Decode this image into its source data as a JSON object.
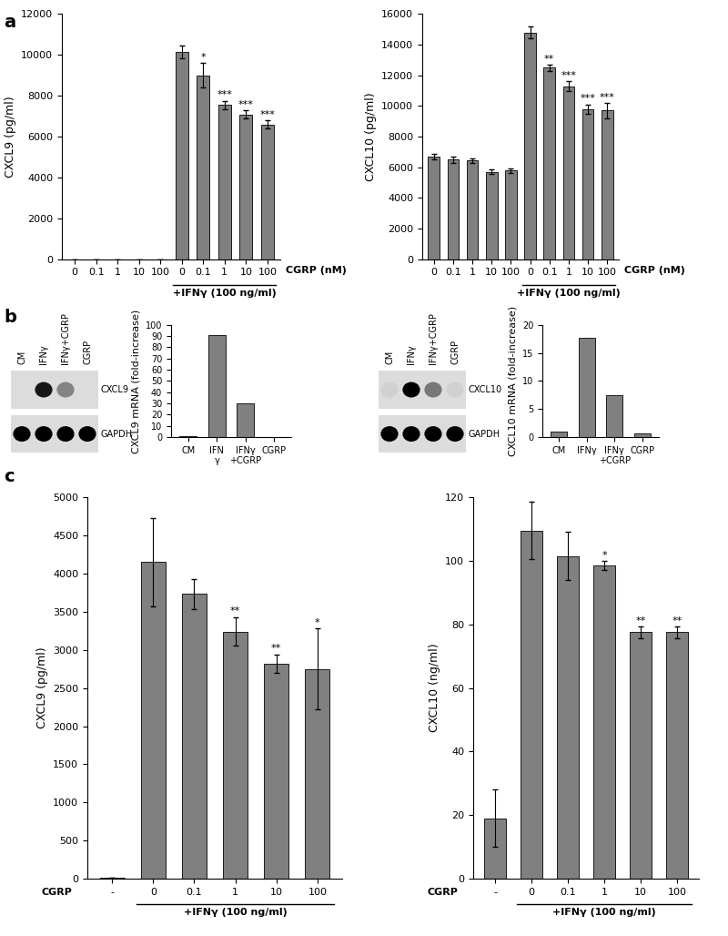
{
  "panel_labels": [
    "a",
    "b",
    "c"
  ],
  "chart_data": [
    {
      "type": "bar",
      "ylabel": "CXCL9 (pg/ml)",
      "xlabel": "CGRP (nM)",
      "categories": [
        "0",
        "0.1",
        "1",
        "10",
        "100",
        "0",
        "0.1",
        "1",
        "10",
        "100"
      ],
      "values": [
        0,
        0,
        0,
        0,
        0,
        10150,
        9000,
        7550,
        7080,
        6600
      ],
      "errors": [
        0,
        0,
        0,
        0,
        0,
        300,
        600,
        200,
        200,
        200
      ],
      "significance": [
        null,
        null,
        null,
        null,
        null,
        null,
        "*",
        "***",
        "***",
        "***"
      ],
      "treatment": [
        null,
        null,
        null,
        null,
        null,
        "+IFNγ (100 ng/ml)",
        "+IFNγ (100 ng/ml)",
        "+IFNγ (100 ng/ml)",
        "+IFNγ (100 ng/ml)",
        "+IFNγ (100 ng/ml)"
      ],
      "ylim": [
        0,
        12000
      ],
      "yticks": [
        0,
        2000,
        4000,
        6000,
        8000,
        10000,
        12000
      ],
      "color": "#808080"
    },
    {
      "type": "bar",
      "ylabel": "CXCL10 (pg/ml)",
      "xlabel": "CGRP (nM)",
      "categories": [
        "0",
        "0.1",
        "1",
        "10",
        "100",
        "0",
        "0.1",
        "1",
        "10",
        "100"
      ],
      "values": [
        6700,
        6500,
        6450,
        5700,
        5800,
        14800,
        12500,
        11300,
        9800,
        9700
      ],
      "errors": [
        200,
        200,
        150,
        150,
        150,
        400,
        200,
        300,
        300,
        500
      ],
      "significance": [
        null,
        null,
        null,
        null,
        null,
        null,
        "**",
        "***",
        "***",
        "***"
      ],
      "treatment": [
        null,
        null,
        null,
        null,
        null,
        "+IFNγ (100 ng/ml)",
        "+IFNγ (100 ng/ml)",
        "+IFNγ (100 ng/ml)",
        "+IFNγ (100 ng/ml)",
        "+IFNγ (100 ng/ml)"
      ],
      "ylim": [
        0,
        16000
      ],
      "yticks": [
        0,
        2000,
        4000,
        6000,
        8000,
        10000,
        12000,
        14000,
        16000
      ],
      "color": "#808080"
    },
    {
      "type": "bar",
      "ylabel": "CXCL9 mRNA (fold-increase)",
      "categories": [
        "CM",
        "IFN\nγ",
        "IFNγ\n+CGRP",
        "CGRP"
      ],
      "values": [
        1,
        91,
        30,
        0.3
      ],
      "ylim": [
        0,
        100
      ],
      "yticks": [
        0,
        10,
        20,
        30,
        40,
        50,
        60,
        70,
        80,
        90,
        100
      ],
      "color": "#808080"
    },
    {
      "type": "bar",
      "ylabel": "CXCL10 mRNA (fold-increase)",
      "categories": [
        "CM",
        "IFNγ",
        "IFNγ\n+CGRP",
        "CGRP"
      ],
      "values": [
        1,
        17.7,
        7.5,
        0.6
      ],
      "ylim": [
        0,
        20
      ],
      "yticks": [
        0,
        5,
        10,
        15,
        20
      ],
      "color": "#808080"
    },
    {
      "type": "bar",
      "ylabel": "CXCL9 (pg/ml)",
      "xlabel": "CGRP",
      "categories": [
        "-",
        "0",
        "0.1",
        "1",
        "10",
        "100"
      ],
      "values": [
        10,
        4150,
        3730,
        3240,
        2820,
        2750
      ],
      "errors": [
        0,
        580,
        200,
        190,
        120,
        530
      ],
      "significance": [
        null,
        null,
        null,
        "**",
        "**",
        "*"
      ],
      "treatment": [
        null,
        "+IFNγ (100 ng/ml)",
        "+IFNγ (100 ng/ml)",
        "+IFNγ (100 ng/ml)",
        "+IFNγ (100 ng/ml)",
        "+IFNγ (100 ng/ml)"
      ],
      "ylim": [
        0,
        5000
      ],
      "yticks": [
        0,
        500,
        1000,
        1500,
        2000,
        2500,
        3000,
        3500,
        4000,
        4500,
        5000
      ],
      "color": "#808080"
    },
    {
      "type": "bar",
      "ylabel": "CXCL10 (ng/ml)",
      "xlabel": "CGRP",
      "categories": [
        "-",
        "0",
        "0.1",
        "1",
        "10",
        "100"
      ],
      "values": [
        19,
        109.5,
        101.5,
        98.5,
        77.5,
        77.5
      ],
      "errors": [
        9,
        9,
        7.5,
        1.3,
        1.8,
        1.8
      ],
      "significance": [
        null,
        null,
        null,
        "*",
        "**",
        "**"
      ],
      "treatment": [
        null,
        "+IFNγ (100 ng/ml)",
        "+IFNγ (100 ng/ml)",
        "+IFNγ (100 ng/ml)",
        "+IFNγ (100 ng/ml)",
        "+IFNγ (100 ng/ml)"
      ],
      "ylim": [
        0,
        120
      ],
      "yticks": [
        0,
        20,
        40,
        60,
        80,
        100,
        120
      ],
      "color": "#808080"
    }
  ],
  "blots": [
    {
      "lanes": [
        "CM",
        "IFNγ",
        "IFNγ+CGRP",
        "CGRP"
      ],
      "rows": [
        {
          "name": "CXCL9",
          "intensity": [
            0,
            0.9,
            0.4,
            0
          ]
        },
        {
          "name": "GAPDH",
          "intensity": [
            1,
            1,
            1,
            1
          ]
        }
      ]
    },
    {
      "lanes": [
        "CM",
        "IFNγ",
        "IFNγ+CGRP",
        "CGRP"
      ],
      "rows": [
        {
          "name": "CXCL10",
          "intensity": [
            0.05,
            1,
            0.45,
            0.05
          ]
        },
        {
          "name": "GAPDH",
          "intensity": [
            1,
            1,
            1,
            1
          ]
        }
      ]
    }
  ]
}
